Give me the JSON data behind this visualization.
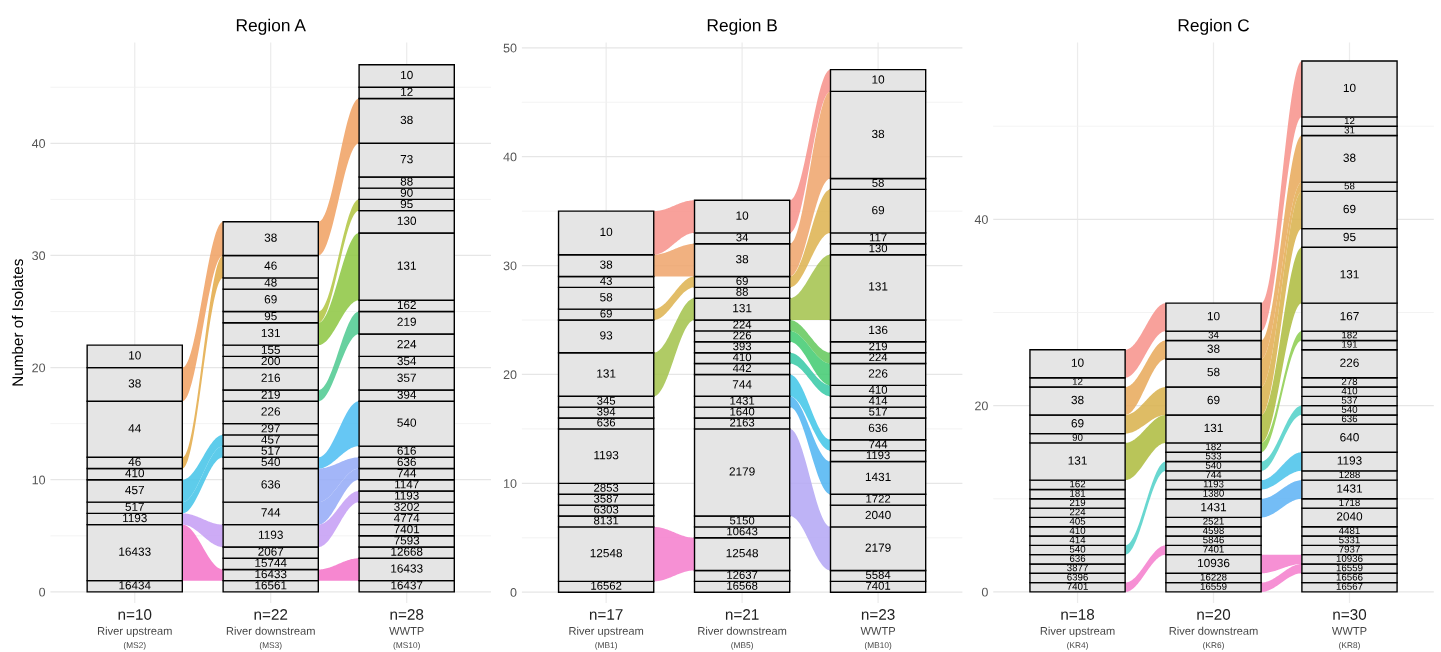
{
  "chart_data": [
    {
      "type": "bar",
      "stacked": true,
      "title": "Region A",
      "ylabel": "Number of Isolates",
      "grid": true,
      "categories": [
        "n=10\nRiver upstream\n(MS2)",
        "n=22\nRiver downstream\n(MS3)",
        "n=28\nWWTP\n(MS10)"
      ],
      "ylim": [
        -1,
        49
      ],
      "yticks": [
        0,
        10,
        20,
        30,
        40
      ],
      "series": [
        {
          "name": "16561",
          "colors": [
            null,
            "#e5e5e5",
            null
          ],
          "values": [
            null,
            1,
            null
          ]
        },
        {
          "name": "16437",
          "colors": [
            null,
            null,
            "#e5e5e5"
          ],
          "values": [
            null,
            null,
            1
          ]
        },
        {
          "name": "16434",
          "colors": [
            "#e5e5e5",
            null,
            null
          ],
          "values": [
            1,
            null,
            null
          ]
        },
        {
          "name": "16433",
          "color": "#f572c8",
          "colors": [
            "#e5e5e5",
            "#e5e5e5",
            "#e5e5e5"
          ],
          "values": [
            5,
            1,
            2
          ]
        },
        {
          "name": "15744",
          "colors": [
            null,
            "#e5e5e5",
            null
          ],
          "values": [
            null,
            1,
            null
          ]
        },
        {
          "name": "12668",
          "colors": [
            null,
            null,
            "#e5e5e5"
          ],
          "values": [
            null,
            null,
            1
          ]
        },
        {
          "name": "7593",
          "colors": [
            null,
            null,
            "#e5e5e5"
          ],
          "values": [
            null,
            null,
            1
          ]
        },
        {
          "name": "7401",
          "colors": [
            null,
            null,
            "#e5e5e5"
          ],
          "values": [
            null,
            null,
            1
          ]
        },
        {
          "name": "4774",
          "colors": [
            null,
            null,
            "#e5e5e5"
          ],
          "values": [
            null,
            null,
            1
          ]
        },
        {
          "name": "3202",
          "colors": [
            null,
            null,
            "#e5e5e5"
          ],
          "values": [
            null,
            null,
            1
          ]
        },
        {
          "name": "2067",
          "colors": [
            null,
            "#e5e5e5",
            null
          ],
          "values": [
            null,
            1,
            null
          ]
        },
        {
          "name": "1193",
          "color": "#c49cf5",
          "colors": [
            "#e5e5e5",
            "#e5e5e5",
            "#e5e5e5"
          ],
          "values": [
            1,
            2,
            1
          ]
        },
        {
          "name": "1147",
          "colors": [
            null,
            null,
            "#e5e5e5"
          ],
          "values": [
            null,
            null,
            1
          ]
        },
        {
          "name": "744",
          "color": "#93a9f7",
          "colors": [
            null,
            "#e5e5e5",
            "#e5e5e5"
          ],
          "values": [
            null,
            2,
            1
          ]
        },
        {
          "name": "636",
          "color": "#93a9f7",
          "colors": [
            null,
            "#e5e5e5",
            "#e5e5e5"
          ],
          "values": [
            null,
            3,
            1
          ]
        },
        {
          "name": "616",
          "colors": [
            null,
            null,
            "#e5e5e5"
          ],
          "values": [
            null,
            null,
            1
          ]
        },
        {
          "name": "540",
          "color": "#4bbdf2",
          "colors": [
            null,
            "#e5e5e5",
            "#e5e5e5"
          ],
          "values": [
            null,
            1,
            4
          ]
        },
        {
          "name": "517",
          "color": "#42c3e8",
          "colors": [
            "#e5e5e5",
            "#e5e5e5",
            null
          ],
          "values": [
            1,
            1,
            null
          ]
        },
        {
          "name": "457",
          "color": "#42c3e8",
          "colors": [
            "#e5e5e5",
            "#e5e5e5",
            null
          ],
          "values": [
            2,
            1,
            null
          ]
        },
        {
          "name": "410",
          "colors": [
            "#e5e5e5",
            null,
            null
          ],
          "values": [
            1,
            null,
            null
          ]
        },
        {
          "name": "394",
          "colors": [
            null,
            null,
            "#e5e5e5"
          ],
          "values": [
            null,
            null,
            1
          ]
        },
        {
          "name": "357",
          "colors": [
            null,
            null,
            "#e5e5e5"
          ],
          "values": [
            null,
            null,
            2
          ]
        },
        {
          "name": "354",
          "colors": [
            null,
            null,
            "#e5e5e5"
          ],
          "values": [
            null,
            null,
            1
          ]
        },
        {
          "name": "297",
          "colors": [
            null,
            "#e5e5e5",
            null
          ],
          "values": [
            null,
            1,
            null
          ]
        },
        {
          "name": "226",
          "colors": [
            null,
            "#e5e5e5",
            null
          ],
          "values": [
            null,
            2,
            null
          ]
        },
        {
          "name": "224",
          "colors": [
            null,
            null,
            "#e5e5e5"
          ],
          "values": [
            null,
            null,
            2
          ]
        },
        {
          "name": "219",
          "color": "#4cc98f",
          "colors": [
            null,
            "#e5e5e5",
            "#e5e5e5"
          ],
          "values": [
            null,
            1,
            2
          ]
        },
        {
          "name": "216",
          "colors": [
            null,
            "#e5e5e5",
            null
          ],
          "values": [
            null,
            2,
            null
          ]
        },
        {
          "name": "200",
          "colors": [
            null,
            "#e5e5e5",
            null
          ],
          "values": [
            null,
            1,
            null
          ]
        },
        {
          "name": "162",
          "colors": [
            null,
            null,
            "#e5e5e5"
          ],
          "values": [
            null,
            null,
            1
          ]
        },
        {
          "name": "155",
          "colors": [
            null,
            "#e5e5e5",
            null
          ],
          "values": [
            null,
            1,
            null
          ]
        },
        {
          "name": "131",
          "color": "#8cc63f",
          "colors": [
            null,
            "#e5e5e5",
            "#e5e5e5"
          ],
          "values": [
            null,
            2,
            6
          ]
        },
        {
          "name": "130",
          "colors": [
            null,
            null,
            "#e5e5e5"
          ],
          "values": [
            null,
            null,
            2
          ]
        },
        {
          "name": "95",
          "color": "#b0c440",
          "colors": [
            null,
            "#e5e5e5",
            "#e5e5e5"
          ],
          "values": [
            null,
            1,
            1
          ]
        },
        {
          "name": "90",
          "colors": [
            null,
            null,
            "#e5e5e5"
          ],
          "values": [
            null,
            null,
            1
          ]
        },
        {
          "name": "88",
          "colors": [
            null,
            null,
            "#e5e5e5"
          ],
          "values": [
            null,
            null,
            1
          ]
        },
        {
          "name": "73",
          "colors": [
            null,
            null,
            "#e5e5e5"
          ],
          "values": [
            null,
            null,
            3
          ]
        },
        {
          "name": "69",
          "colors": [
            null,
            "#e5e5e5",
            null
          ],
          "values": [
            null,
            2,
            null
          ]
        },
        {
          "name": "48",
          "colors": [
            null,
            "#e5e5e5",
            null
          ],
          "values": [
            null,
            1,
            null
          ]
        },
        {
          "name": "46",
          "color": "#e3a945",
          "colors": [
            "#e5e5e5",
            "#e5e5e5",
            null
          ],
          "values": [
            1,
            2,
            null
          ]
        },
        {
          "name": "44",
          "colors": [
            "#e5e5e5",
            null,
            null
          ],
          "values": [
            5,
            null,
            null
          ]
        },
        {
          "name": "38",
          "color": "#f0a060",
          "colors": [
            "#e5e5e5",
            "#e5e5e5",
            "#e5e5e5"
          ],
          "values": [
            3,
            3,
            4
          ]
        },
        {
          "name": "12",
          "colors": [
            null,
            null,
            "#e5e5e5"
          ],
          "values": [
            null,
            null,
            1
          ]
        },
        {
          "name": "10",
          "colors": [
            "#e5e5e5",
            null,
            "#e5e5e5"
          ],
          "values": [
            2,
            null,
            2
          ]
        }
      ]
    },
    {
      "type": "bar",
      "stacked": true,
      "title": "Region B",
      "grid": true,
      "categories": [
        "n=17\nRiver upstream\n(MB1)",
        "n=21\nRiver downstream\n(MB5)",
        "n=23\nWWTP\n(MB10)"
      ],
      "ylim": [
        -1,
        50.5
      ],
      "yticks": [
        0,
        10,
        20,
        30,
        40,
        50
      ],
      "series": [
        {
          "name": "16568",
          "colors": [
            null,
            "#e5e5e5",
            null
          ],
          "values": [
            null,
            1,
            null
          ]
        },
        {
          "name": "16562",
          "colors": [
            "#e5e5e5",
            null,
            null
          ],
          "values": [
            1,
            null,
            null
          ]
        },
        {
          "name": "12637",
          "colors": [
            null,
            "#e5e5e5",
            null
          ],
          "values": [
            null,
            1,
            null
          ]
        },
        {
          "name": "12548",
          "color": "#f57ccd",
          "colors": [
            "#e5e5e5",
            "#e5e5e5",
            null
          ],
          "values": [
            5,
            3,
            null
          ]
        },
        {
          "name": "10643",
          "colors": [
            null,
            "#e5e5e5",
            null
          ],
          "values": [
            null,
            1,
            null
          ]
        },
        {
          "name": "8131",
          "colors": [
            "#e5e5e5",
            null,
            null
          ],
          "values": [
            1,
            null,
            null
          ]
        },
        {
          "name": "7401",
          "colors": [
            null,
            null,
            "#e5e5e5"
          ],
          "values": [
            null,
            null,
            1
          ]
        },
        {
          "name": "6303",
          "colors": [
            "#e5e5e5",
            null,
            null
          ],
          "values": [
            1,
            null,
            null
          ]
        },
        {
          "name": "5584",
          "colors": [
            null,
            null,
            "#e5e5e5"
          ],
          "values": [
            null,
            null,
            1
          ]
        },
        {
          "name": "5150",
          "colors": [
            null,
            "#e5e5e5",
            null
          ],
          "values": [
            null,
            1,
            null
          ]
        },
        {
          "name": "3587",
          "colors": [
            "#e5e5e5",
            null,
            null
          ],
          "values": [
            1,
            null,
            null
          ]
        },
        {
          "name": "2853",
          "colors": [
            "#e5e5e5",
            null,
            null
          ],
          "values": [
            1,
            null,
            null
          ]
        },
        {
          "name": "2179",
          "color": "#b3a6f4",
          "colors": [
            null,
            "#e5e5e5",
            "#e5e5e5"
          ],
          "values": [
            null,
            8,
            4
          ]
        },
        {
          "name": "2163",
          "colors": [
            null,
            "#e5e5e5",
            null
          ],
          "values": [
            null,
            1,
            null
          ]
        },
        {
          "name": "2040",
          "colors": [
            null,
            null,
            "#e5e5e5"
          ],
          "values": [
            null,
            null,
            2
          ]
        },
        {
          "name": "1722",
          "colors": [
            null,
            null,
            "#e5e5e5"
          ],
          "values": [
            null,
            null,
            1
          ]
        },
        {
          "name": "1640",
          "colors": [
            null,
            "#e5e5e5",
            null
          ],
          "values": [
            null,
            1,
            null
          ]
        },
        {
          "name": "1431",
          "color": "#4db4f2",
          "colors": [
            null,
            "#e5e5e5",
            "#e5e5e5"
          ],
          "values": [
            null,
            1,
            3
          ]
        },
        {
          "name": "1193",
          "colors": [
            "#e5e5e5",
            null,
            "#e5e5e5"
          ],
          "values": [
            5,
            null,
            1
          ]
        },
        {
          "name": "744",
          "color": "#3ec6e8",
          "colors": [
            null,
            "#e5e5e5",
            "#e5e5e5"
          ],
          "values": [
            null,
            2,
            1
          ]
        },
        {
          "name": "636",
          "colors": [
            "#e5e5e5",
            null,
            "#e5e5e5"
          ],
          "values": [
            1,
            null,
            2
          ]
        },
        {
          "name": "517",
          "colors": [
            null,
            null,
            "#e5e5e5"
          ],
          "values": [
            null,
            null,
            1
          ]
        },
        {
          "name": "442",
          "colors": [
            null,
            "#e5e5e5",
            null
          ],
          "values": [
            null,
            1,
            null
          ]
        },
        {
          "name": "414",
          "colors": [
            null,
            null,
            "#e5e5e5"
          ],
          "values": [
            null,
            null,
            1
          ]
        },
        {
          "name": "410",
          "color": "#35c9a6",
          "colors": [
            null,
            "#e5e5e5",
            "#e5e5e5"
          ],
          "values": [
            null,
            1,
            1
          ]
        },
        {
          "name": "394",
          "colors": [
            "#e5e5e5",
            null,
            null
          ],
          "values": [
            1,
            null,
            null
          ]
        },
        {
          "name": "393",
          "colors": [
            null,
            "#e5e5e5",
            null
          ],
          "values": [
            null,
            1,
            null
          ]
        },
        {
          "name": "345",
          "colors": [
            "#e5e5e5",
            null,
            null
          ],
          "values": [
            1,
            null,
            null
          ]
        },
        {
          "name": "226",
          "color": "#3fca70",
          "colors": [
            null,
            "#e5e5e5",
            "#e5e5e5"
          ],
          "values": [
            null,
            1,
            2
          ]
        },
        {
          "name": "224",
          "color": "#62c85a",
          "colors": [
            null,
            "#e5e5e5",
            "#e5e5e5"
          ],
          "values": [
            null,
            1,
            1
          ]
        },
        {
          "name": "219",
          "colors": [
            null,
            null,
            "#e5e5e5"
          ],
          "values": [
            null,
            null,
            1
          ]
        },
        {
          "name": "136",
          "colors": [
            null,
            null,
            "#e5e5e5"
          ],
          "values": [
            null,
            null,
            2
          ]
        },
        {
          "name": "131",
          "color": "#a2c24a",
          "colors": [
            "#e5e5e5",
            "#e5e5e5",
            "#e5e5e5"
          ],
          "values": [
            4,
            2,
            6
          ]
        },
        {
          "name": "130",
          "colors": [
            null,
            null,
            "#e5e5e5"
          ],
          "values": [
            null,
            null,
            1
          ]
        },
        {
          "name": "117",
          "colors": [
            null,
            null,
            "#e5e5e5"
          ],
          "values": [
            null,
            null,
            1
          ]
        },
        {
          "name": "93",
          "colors": [
            "#e5e5e5",
            null,
            null
          ],
          "values": [
            3,
            null,
            null
          ]
        },
        {
          "name": "88",
          "colors": [
            null,
            "#e5e5e5",
            null
          ],
          "values": [
            null,
            1,
            null
          ]
        },
        {
          "name": "69",
          "color": "#ddb24e",
          "colors": [
            "#e5e5e5",
            "#e5e5e5",
            "#e5e5e5"
          ],
          "values": [
            1,
            1,
            4
          ]
        },
        {
          "name": "58",
          "colors": [
            "#e5e5e5",
            null,
            "#e5e5e5"
          ],
          "values": [
            2,
            null,
            1
          ]
        },
        {
          "name": "43",
          "colors": [
            "#e5e5e5",
            null,
            null
          ],
          "values": [
            1,
            null,
            null
          ]
        },
        {
          "name": "38",
          "color": "#eea36a",
          "colors": [
            "#e5e5e5",
            "#e5e5e5",
            "#e5e5e5"
          ],
          "values": [
            2,
            3,
            8
          ]
        },
        {
          "name": "34",
          "colors": [
            null,
            "#e5e5e5",
            null
          ],
          "values": [
            null,
            1,
            null
          ]
        },
        {
          "name": "10",
          "color": "#f7908a",
          "colors": [
            "#e5e5e5",
            "#e5e5e5",
            "#e5e5e5"
          ],
          "values": [
            4,
            3,
            2
          ]
        }
      ]
    },
    {
      "type": "bar",
      "stacked": true,
      "title": "Region C",
      "grid": true,
      "categories": [
        "n=18\nRiver upstream\n(KR4)",
        "n=20\nRiver downstream\n(KR6)",
        "n=30\nWWTP\n(KR8)"
      ],
      "ylim": [
        -1.2,
        59
      ],
      "yticks": [
        0,
        20,
        40
      ],
      "series": [
        {
          "name": "16567",
          "colors": [
            null,
            null,
            "#e5e5e5"
          ],
          "values": [
            null,
            null,
            1
          ]
        },
        {
          "name": "16566",
          "colors": [
            null,
            null,
            "#e5e5e5"
          ],
          "values": [
            null,
            null,
            1
          ]
        },
        {
          "name": "16559",
          "color": "#f57ccd",
          "colors": [
            null,
            "#e5e5e5",
            "#e5e5e5"
          ],
          "values": [
            null,
            1,
            1
          ]
        },
        {
          "name": "16228",
          "colors": [
            null,
            "#e5e5e5",
            null
          ],
          "values": [
            null,
            1,
            null
          ]
        },
        {
          "name": "10936",
          "color": "#f57ccd",
          "colors": [
            null,
            "#e5e5e5",
            "#e5e5e5"
          ],
          "values": [
            null,
            2,
            1
          ]
        },
        {
          "name": "7937",
          "colors": [
            null,
            null,
            "#e5e5e5"
          ],
          "values": [
            null,
            null,
            1
          ]
        },
        {
          "name": "7401",
          "color": "#f57ccd",
          "colors": [
            "#e5e5e5",
            "#e5e5e5",
            null
          ],
          "values": [
            1,
            1,
            null
          ]
        },
        {
          "name": "6396",
          "colors": [
            "#e5e5e5",
            null,
            null
          ],
          "values": [
            1,
            null,
            null
          ]
        },
        {
          "name": "5846",
          "colors": [
            null,
            "#e5e5e5",
            null
          ],
          "values": [
            null,
            1,
            null
          ]
        },
        {
          "name": "5331",
          "colors": [
            null,
            null,
            "#e5e5e5"
          ],
          "values": [
            null,
            null,
            1
          ]
        },
        {
          "name": "4598",
          "colors": [
            null,
            "#e5e5e5",
            null
          ],
          "values": [
            null,
            1,
            null
          ]
        },
        {
          "name": "4481",
          "colors": [
            null,
            null,
            "#e5e5e5"
          ],
          "values": [
            null,
            null,
            1
          ]
        },
        {
          "name": "3877",
          "colors": [
            "#e5e5e5",
            null,
            null
          ],
          "values": [
            1,
            null,
            null
          ]
        },
        {
          "name": "2521",
          "colors": [
            null,
            "#e5e5e5",
            null
          ],
          "values": [
            null,
            1,
            null
          ]
        },
        {
          "name": "2040",
          "colors": [
            null,
            null,
            "#e5e5e5"
          ],
          "values": [
            null,
            null,
            2
          ]
        },
        {
          "name": "1718",
          "colors": [
            null,
            null,
            "#e5e5e5"
          ],
          "values": [
            null,
            null,
            1
          ]
        },
        {
          "name": "1431",
          "color": "#5cb2f4",
          "colors": [
            null,
            "#e5e5e5",
            "#e5e5e5"
          ],
          "values": [
            null,
            2,
            2
          ]
        },
        {
          "name": "1380",
          "colors": [
            null,
            "#e5e5e5",
            null
          ],
          "values": [
            null,
            1,
            null
          ]
        },
        {
          "name": "1288",
          "colors": [
            null,
            null,
            "#e5e5e5"
          ],
          "values": [
            null,
            null,
            1
          ]
        },
        {
          "name": "1193",
          "color": "#47c2ea",
          "colors": [
            null,
            "#e5e5e5",
            "#e5e5e5"
          ],
          "values": [
            null,
            1,
            2
          ]
        },
        {
          "name": "744",
          "colors": [
            null,
            "#e5e5e5",
            null
          ],
          "values": [
            null,
            1,
            null
          ]
        },
        {
          "name": "640",
          "colors": [
            null,
            null,
            "#e5e5e5"
          ],
          "values": [
            null,
            null,
            3
          ]
        },
        {
          "name": "636",
          "colors": [
            "#e5e5e5",
            null,
            "#e5e5e5"
          ],
          "values": [
            1,
            null,
            1
          ]
        },
        {
          "name": "540",
          "color": "#4fd0c8",
          "colors": [
            "#e5e5e5",
            "#e5e5e5",
            "#e5e5e5"
          ],
          "values": [
            1,
            1,
            1
          ]
        },
        {
          "name": "537",
          "colors": [
            null,
            null,
            "#e5e5e5"
          ],
          "values": [
            null,
            null,
            1
          ]
        },
        {
          "name": "533",
          "colors": [
            null,
            "#e5e5e5",
            null
          ],
          "values": [
            null,
            1,
            null
          ]
        },
        {
          "name": "414",
          "colors": [
            "#e5e5e5",
            null,
            null
          ],
          "values": [
            1,
            null,
            null
          ]
        },
        {
          "name": "410",
          "colors": [
            "#e5e5e5",
            null,
            "#e5e5e5"
          ],
          "values": [
            1,
            null,
            1
          ]
        },
        {
          "name": "405",
          "colors": [
            "#e5e5e5",
            null,
            null
          ],
          "values": [
            1,
            null,
            null
          ]
        },
        {
          "name": "278",
          "colors": [
            null,
            null,
            "#e5e5e5"
          ],
          "values": [
            null,
            null,
            1
          ]
        },
        {
          "name": "226",
          "colors": [
            null,
            null,
            "#e5e5e5"
          ],
          "values": [
            null,
            null,
            3
          ]
        },
        {
          "name": "224",
          "colors": [
            "#e5e5e5",
            null,
            null
          ],
          "values": [
            1,
            null,
            null
          ]
        },
        {
          "name": "219",
          "colors": [
            "#e5e5e5",
            null,
            null
          ],
          "values": [
            1,
            null,
            null
          ]
        },
        {
          "name": "191",
          "colors": [
            null,
            null,
            "#e5e5e5"
          ],
          "values": [
            null,
            null,
            1
          ]
        },
        {
          "name": "182",
          "color": "#8ccc4c",
          "colors": [
            null,
            "#e5e5e5",
            "#e5e5e5"
          ],
          "values": [
            null,
            1,
            1
          ]
        },
        {
          "name": "181",
          "colors": [
            "#e5e5e5",
            null,
            null
          ],
          "values": [
            1,
            null,
            null
          ]
        },
        {
          "name": "167",
          "colors": [
            null,
            null,
            "#e5e5e5"
          ],
          "values": [
            null,
            null,
            3
          ]
        },
        {
          "name": "162",
          "colors": [
            "#e5e5e5",
            null,
            null
          ],
          "values": [
            1,
            null,
            null
          ]
        },
        {
          "name": "131",
          "color": "#adbb3c",
          "colors": [
            "#e5e5e5",
            "#e5e5e5",
            "#e5e5e5"
          ],
          "values": [
            4,
            3,
            6
          ]
        },
        {
          "name": "95",
          "colors": [
            null,
            null,
            "#e5e5e5"
          ],
          "values": [
            null,
            null,
            2
          ]
        },
        {
          "name": "90",
          "colors": [
            "#e5e5e5",
            null,
            null
          ],
          "values": [
            1,
            null,
            null
          ]
        },
        {
          "name": "69",
          "color": "#d8b04a",
          "colors": [
            "#e5e5e5",
            "#e5e5e5",
            "#e5e5e5"
          ],
          "values": [
            2,
            3,
            4
          ]
        },
        {
          "name": "58",
          "color": "#e3ac50",
          "colors": [
            null,
            "#e5e5e5",
            "#e5e5e5"
          ],
          "values": [
            null,
            3,
            1
          ]
        },
        {
          "name": "38",
          "color": "#e8a858",
          "colors": [
            "#e5e5e5",
            "#e5e5e5",
            "#e5e5e5"
          ],
          "values": [
            3,
            2,
            5
          ]
        },
        {
          "name": "34",
          "colors": [
            null,
            "#e5e5e5",
            null
          ],
          "values": [
            null,
            1,
            null
          ]
        },
        {
          "name": "31",
          "colors": [
            null,
            null,
            "#e5e5e5"
          ],
          "values": [
            null,
            null,
            1
          ]
        },
        {
          "name": "12",
          "colors": [
            "#e5e5e5",
            null,
            "#e5e5e5"
          ],
          "values": [
            1,
            null,
            1
          ]
        },
        {
          "name": "10",
          "color": "#f7908a",
          "colors": [
            "#e5e5e5",
            "#e5e5e5",
            "#e5e5e5"
          ],
          "values": [
            3,
            3,
            6
          ]
        }
      ]
    }
  ]
}
